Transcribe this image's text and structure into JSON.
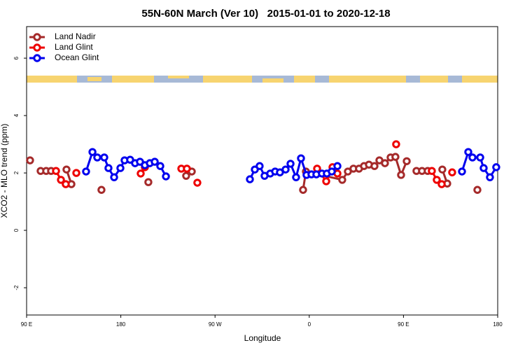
{
  "chart_data": {
    "type": "line",
    "title": "55N-60N March (Ver 10)   2015-01-01 to 2020-12-18",
    "x_label": "Longitude",
    "y_label": "XCO2 - MLO trend (ppm)",
    "xlim": [
      90,
      540
    ],
    "ylim": [
      -2.95,
      7.1
    ],
    "xticks": [
      {
        "value": 90,
        "label": "90 E"
      },
      180,
      {
        "value": 270,
        "label": "90 W"
      },
      {
        "value": 360,
        "label": "0"
      },
      {
        "value": 450,
        "label": "90 E"
      },
      {
        "value": 540,
        "label": "180"
      }
    ],
    "yticks": [
      -2,
      0,
      2,
      4,
      6
    ],
    "legend": "topleft",
    "series": [
      {
        "name": "Land Nadir",
        "color": "#a52a2a",
        "x": [
          93.3,
          null,
          103.4,
          108.7,
          113.4,
          null,
          128.1,
          132.8,
          null,
          161.5,
          null,
          206.3,
          null,
          242.4,
          247.8,
          null,
          354.1,
          356.8,
          391.5,
          396.9,
          402.2,
          407.5,
          412.3,
          417.0,
          422.3,
          427.0,
          432.3,
          437.7,
          442.3,
          447.7,
          453.1,
          null,
          462.4,
          467.7,
          473.1,
          null,
          487.1,
          491.8,
          null,
          520.6
        ],
        "values": [
          2.44,
          null,
          2.07,
          2.07,
          2.07,
          null,
          2.12,
          1.61,
          null,
          1.41,
          null,
          1.68,
          null,
          1.9,
          2.05,
          null,
          1.41,
          2.05,
          1.76,
          2.05,
          2.15,
          2.15,
          2.24,
          2.29,
          2.24,
          2.44,
          2.34,
          2.54,
          2.56,
          1.93,
          2.41,
          null,
          2.07,
          2.07,
          2.07,
          null,
          2.12,
          1.63,
          null,
          1.41
        ]
      },
      {
        "name": "Land Glint",
        "color": "#ee0000",
        "x": [
          118.1,
          122.8,
          127.4,
          null,
          137.5,
          null,
          199.0,
          203.0,
          null,
          237.8,
          243.1,
          null,
          253.1,
          null,
          367.5,
          376.2,
          382.2,
          386.9,
          null,
          443.0,
          null,
          477.1,
          481.8,
          486.5,
          null,
          496.5
        ],
        "values": [
          2.07,
          1.76,
          1.61,
          null,
          2.0,
          null,
          1.98,
          2.2,
          null,
          2.15,
          2.15,
          null,
          1.66,
          null,
          2.15,
          1.71,
          2.2,
          1.98,
          null,
          3.0,
          null,
          2.07,
          1.76,
          1.61,
          null,
          2.02
        ]
      },
      {
        "name": "Ocean Glint",
        "color": "#0000ee",
        "x": [
          146.8,
          152.9,
          157.5,
          164.2,
          168.2,
          173.6,
          179.6,
          183.6,
          188.9,
          193.6,
          198.3,
          203.0,
          207.7,
          212.4,
          217.7,
          223.1,
          null,
          303.3,
          308.0,
          312.6,
          317.3,
          322.7,
          327.4,
          332.0,
          337.4,
          342.1,
          347.4,
          352.1,
          357.4,
          362.1,
          366.8,
          372.1,
          376.8,
          381.5,
          386.9,
          null,
          505.9,
          511.9,
          515.9,
          523.3,
          526.6,
          532.6,
          538.6
        ],
        "values": [
          2.05,
          2.73,
          2.54,
          2.54,
          2.17,
          1.85,
          2.17,
          2.44,
          2.46,
          2.34,
          2.39,
          2.27,
          2.34,
          2.39,
          2.24,
          1.88,
          null,
          1.78,
          2.12,
          2.24,
          1.9,
          1.98,
          2.05,
          2.02,
          2.12,
          2.32,
          1.85,
          2.51,
          1.93,
          1.95,
          1.95,
          1.98,
          1.98,
          2.05,
          2.24,
          null,
          2.05,
          2.73,
          2.54,
          2.54,
          2.17,
          1.85,
          2.2
        ]
      }
    ]
  }
}
